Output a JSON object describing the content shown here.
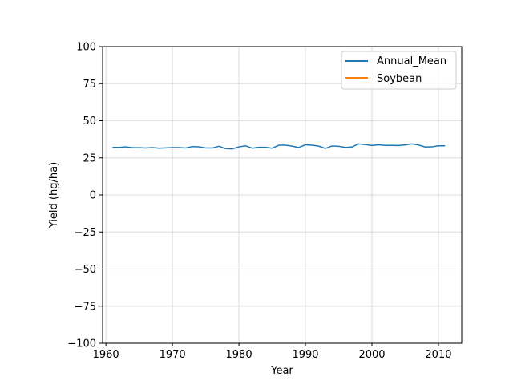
{
  "chart_data": {
    "type": "line",
    "xlabel": "Year",
    "ylabel": "Yield (hg/ha)",
    "xlim": [
      1959.5,
      2013.5
    ],
    "ylim": [
      -100,
      100
    ],
    "xticks": [
      1960,
      1970,
      1980,
      1990,
      2000,
      2010
    ],
    "yticks": [
      -100,
      -75,
      -50,
      -25,
      0,
      25,
      50,
      75,
      100
    ],
    "grid": true,
    "legend": {
      "position": "top-right"
    },
    "series": [
      {
        "name": "Annual_Mean",
        "color": "#1f77b4",
        "x": [
          1961,
          1962,
          1963,
          1964,
          1965,
          1966,
          1967,
          1968,
          1969,
          1970,
          1971,
          1972,
          1973,
          1974,
          1975,
          1976,
          1977,
          1978,
          1979,
          1980,
          1981,
          1982,
          1983,
          1984,
          1985,
          1986,
          1987,
          1988,
          1989,
          1990,
          1991,
          1992,
          1993,
          1994,
          1995,
          1996,
          1997,
          1998,
          1999,
          2000,
          2001,
          2002,
          2003,
          2004,
          2005,
          2006,
          2007,
          2008,
          2009,
          2010,
          2011
        ],
        "y": [
          32.0,
          32.0,
          32.4,
          31.8,
          31.8,
          31.6,
          31.9,
          31.5,
          31.7,
          31.9,
          31.9,
          31.6,
          32.6,
          32.4,
          31.7,
          31.6,
          32.8,
          31.2,
          31.0,
          32.4,
          33.1,
          31.5,
          32.1,
          32.1,
          31.5,
          33.5,
          33.5,
          32.9,
          31.9,
          33.8,
          33.5,
          32.9,
          31.3,
          33.0,
          32.8,
          32.0,
          32.3,
          34.4,
          33.9,
          33.3,
          33.8,
          33.4,
          33.4,
          33.3,
          33.7,
          34.4,
          33.7,
          32.3,
          32.4,
          33.1,
          33.1
        ]
      },
      {
        "name": "Soybean",
        "color": "#ff7f0e",
        "x": [],
        "y": []
      }
    ]
  }
}
